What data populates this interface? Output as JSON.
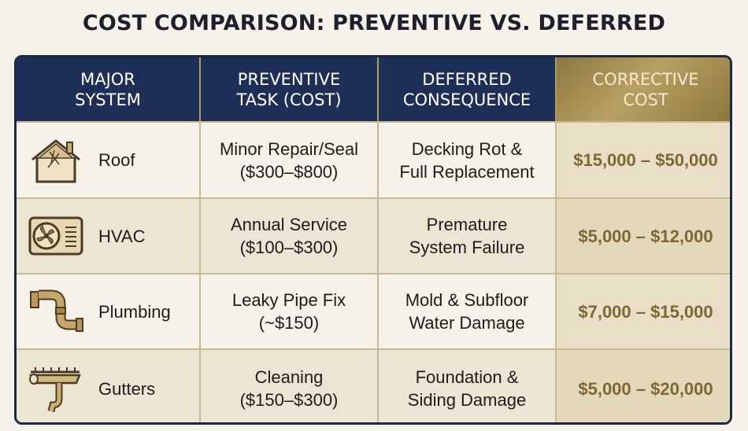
{
  "title": "COST COMPARISON: PREVENTIVE VS. DEFERRED",
  "headers": {
    "system": "MAJOR\nSYSTEM",
    "preventive": "PREVENTIVE\nTASK (COST)",
    "deferred": "DEFERRED\nCONSEQUENCE",
    "corrective": "CORRECTIVE\nCOST"
  },
  "rows": [
    {
      "system": "Roof",
      "icon": "house-roof-icon",
      "preventive": "Minor Repair/Seal\n($300–$800)",
      "deferred": "Decking Rot &\nFull Replacement",
      "cost": "$15,000 – $50,000"
    },
    {
      "system": "HVAC",
      "icon": "ac-unit-icon",
      "preventive": "Annual Service\n($100–$300)",
      "deferred": "Premature\nSystem Failure",
      "cost": "$5,000 – $12,000"
    },
    {
      "system": "Plumbing",
      "icon": "pipe-icon",
      "preventive": "Leaky Pipe Fix\n(~$150)",
      "deferred": "Mold & Subfloor\nWater Damage",
      "cost": "$7,000 – $15,000"
    },
    {
      "system": "Gutters",
      "icon": "gutter-icon",
      "preventive": "Cleaning\n($150–$300)",
      "deferred": "Foundation &\nSiding Damage",
      "cost": "$5,000 – $20,000"
    }
  ],
  "colors": {
    "navy": "#1e2f57",
    "gold": "#7d6732",
    "background": "#f6f2e9"
  }
}
